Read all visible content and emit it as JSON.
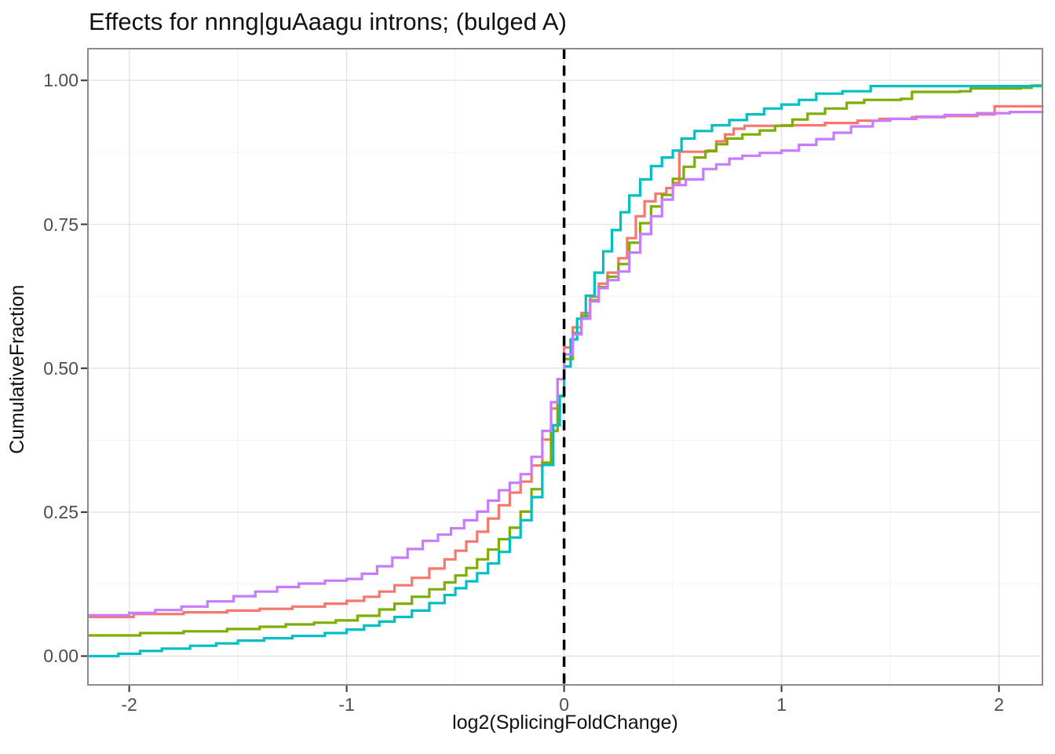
{
  "chart_data": {
    "type": "line",
    "subtype": "ecdf_step",
    "title": "Effects for nnng|guAaagu introns; (bulged A)",
    "xlabel": "log2(SplicingFoldChange)",
    "ylabel": "CumulativeFraction",
    "xlim": [
      -2.19,
      2.2
    ],
    "ylim": [
      -0.05,
      1.055
    ],
    "grid": true,
    "legend_position": "none",
    "x_ticks": {
      "values": [
        -2,
        -1,
        0,
        1,
        2
      ],
      "labels": [
        "-2",
        "-1",
        "0",
        "1",
        "2"
      ]
    },
    "y_ticks": {
      "values": [
        0,
        0.25,
        0.5,
        0.75,
        1.0
      ],
      "labels": [
        "0.00",
        "0.25",
        "0.50",
        "0.75",
        "1.00"
      ]
    },
    "x_minor_ticks": [
      -1.5,
      -0.5,
      0.5,
      1.5
    ],
    "y_minor_ticks": [
      0.125,
      0.375,
      0.625,
      0.875
    ],
    "reference_line": {
      "x": 0,
      "style": "dashed",
      "color": "#000000"
    },
    "series": [
      {
        "name": "salmon",
        "color": "#F8766D",
        "points": [
          [
            -2.19,
            0.068
          ],
          [
            -1.98,
            0.073
          ],
          [
            -1.75,
            0.076
          ],
          [
            -1.55,
            0.079
          ],
          [
            -1.4,
            0.082
          ],
          [
            -1.25,
            0.086
          ],
          [
            -1.1,
            0.091
          ],
          [
            -1.0,
            0.096
          ],
          [
            -0.92,
            0.103
          ],
          [
            -0.85,
            0.112
          ],
          [
            -0.78,
            0.123
          ],
          [
            -0.7,
            0.136
          ],
          [
            -0.62,
            0.152
          ],
          [
            -0.55,
            0.168
          ],
          [
            -0.5,
            0.183
          ],
          [
            -0.45,
            0.199
          ],
          [
            -0.4,
            0.216
          ],
          [
            -0.35,
            0.239
          ],
          [
            -0.3,
            0.262
          ],
          [
            -0.25,
            0.284
          ],
          [
            -0.2,
            0.303
          ],
          [
            -0.15,
            0.331
          ],
          [
            -0.1,
            0.376
          ],
          [
            -0.06,
            0.43
          ],
          [
            -0.03,
            0.481
          ],
          [
            0.0,
            0.536
          ],
          [
            0.04,
            0.571
          ],
          [
            0.08,
            0.596
          ],
          [
            0.12,
            0.624
          ],
          [
            0.16,
            0.647
          ],
          [
            0.2,
            0.666
          ],
          [
            0.25,
            0.691
          ],
          [
            0.29,
            0.726
          ],
          [
            0.33,
            0.764
          ],
          [
            0.37,
            0.79
          ],
          [
            0.42,
            0.803
          ],
          [
            0.47,
            0.813
          ],
          [
            0.5,
            0.822
          ],
          [
            0.53,
            0.876
          ],
          [
            0.66,
            0.878
          ],
          [
            0.7,
            0.894
          ],
          [
            0.74,
            0.906
          ],
          [
            0.78,
            0.916
          ],
          [
            0.83,
            0.921
          ],
          [
            1.0,
            0.922
          ],
          [
            1.2,
            0.926
          ],
          [
            1.35,
            0.93
          ],
          [
            1.45,
            0.933
          ],
          [
            1.6,
            0.936
          ],
          [
            1.75,
            0.938
          ],
          [
            1.9,
            0.941
          ],
          [
            1.98,
            0.955
          ],
          [
            2.2,
            0.956
          ]
        ]
      },
      {
        "name": "green",
        "color": "#7CAE00",
        "points": [
          [
            -2.19,
            0.036
          ],
          [
            -1.95,
            0.04
          ],
          [
            -1.75,
            0.043
          ],
          [
            -1.55,
            0.047
          ],
          [
            -1.4,
            0.051
          ],
          [
            -1.28,
            0.055
          ],
          [
            -1.15,
            0.058
          ],
          [
            -1.05,
            0.062
          ],
          [
            -0.95,
            0.07
          ],
          [
            -0.85,
            0.081
          ],
          [
            -0.78,
            0.091
          ],
          [
            -0.7,
            0.103
          ],
          [
            -0.62,
            0.116
          ],
          [
            -0.55,
            0.128
          ],
          [
            -0.5,
            0.14
          ],
          [
            -0.45,
            0.153
          ],
          [
            -0.4,
            0.168
          ],
          [
            -0.35,
            0.185
          ],
          [
            -0.3,
            0.203
          ],
          [
            -0.25,
            0.223
          ],
          [
            -0.2,
            0.251
          ],
          [
            -0.15,
            0.29
          ],
          [
            -0.1,
            0.336
          ],
          [
            -0.06,
            0.391
          ],
          [
            -0.03,
            0.451
          ],
          [
            0.0,
            0.516
          ],
          [
            0.04,
            0.561
          ],
          [
            0.08,
            0.591
          ],
          [
            0.12,
            0.618
          ],
          [
            0.16,
            0.641
          ],
          [
            0.2,
            0.659
          ],
          [
            0.25,
            0.681
          ],
          [
            0.3,
            0.718
          ],
          [
            0.35,
            0.752
          ],
          [
            0.4,
            0.781
          ],
          [
            0.45,
            0.801
          ],
          [
            0.5,
            0.829
          ],
          [
            0.55,
            0.85
          ],
          [
            0.6,
            0.866
          ],
          [
            0.65,
            0.877
          ],
          [
            0.7,
            0.889
          ],
          [
            0.75,
            0.899
          ],
          [
            0.82,
            0.906
          ],
          [
            0.9,
            0.913
          ],
          [
            0.97,
            0.921
          ],
          [
            1.05,
            0.932
          ],
          [
            1.12,
            0.942
          ],
          [
            1.2,
            0.951
          ],
          [
            1.3,
            0.961
          ],
          [
            1.38,
            0.966
          ],
          [
            1.55,
            0.968
          ],
          [
            1.6,
            0.98
          ],
          [
            1.82,
            0.981
          ],
          [
            1.87,
            0.986
          ],
          [
            2.1,
            0.987
          ],
          [
            2.15,
            0.991
          ],
          [
            2.2,
            0.991
          ]
        ]
      },
      {
        "name": "teal",
        "color": "#00BFC4",
        "points": [
          [
            -2.19,
            0.0
          ],
          [
            -2.05,
            0.004
          ],
          [
            -1.95,
            0.009
          ],
          [
            -1.85,
            0.013
          ],
          [
            -1.72,
            0.018
          ],
          [
            -1.6,
            0.022
          ],
          [
            -1.5,
            0.027
          ],
          [
            -1.38,
            0.031
          ],
          [
            -1.25,
            0.035
          ],
          [
            -1.1,
            0.04
          ],
          [
            -1.0,
            0.046
          ],
          [
            -0.92,
            0.053
          ],
          [
            -0.85,
            0.06
          ],
          [
            -0.78,
            0.068
          ],
          [
            -0.7,
            0.079
          ],
          [
            -0.62,
            0.092
          ],
          [
            -0.55,
            0.106
          ],
          [
            -0.5,
            0.118
          ],
          [
            -0.45,
            0.13
          ],
          [
            -0.4,
            0.144
          ],
          [
            -0.35,
            0.161
          ],
          [
            -0.3,
            0.181
          ],
          [
            -0.25,
            0.206
          ],
          [
            -0.2,
            0.236
          ],
          [
            -0.15,
            0.276
          ],
          [
            -0.1,
            0.332
          ],
          [
            -0.05,
            0.401
          ],
          [
            -0.02,
            0.452
          ],
          [
            0.0,
            0.503
          ],
          [
            0.03,
            0.55
          ],
          [
            0.06,
            0.586
          ],
          [
            0.1,
            0.626
          ],
          [
            0.14,
            0.666
          ],
          [
            0.18,
            0.703
          ],
          [
            0.22,
            0.74
          ],
          [
            0.26,
            0.771
          ],
          [
            0.3,
            0.8
          ],
          [
            0.35,
            0.828
          ],
          [
            0.4,
            0.851
          ],
          [
            0.45,
            0.866
          ],
          [
            0.5,
            0.878
          ],
          [
            0.54,
            0.899
          ],
          [
            0.6,
            0.912
          ],
          [
            0.68,
            0.922
          ],
          [
            0.76,
            0.931
          ],
          [
            0.84,
            0.941
          ],
          [
            0.92,
            0.951
          ],
          [
            1.0,
            0.958
          ],
          [
            1.08,
            0.966
          ],
          [
            1.16,
            0.977
          ],
          [
            1.28,
            0.981
          ],
          [
            1.41,
            0.99
          ],
          [
            2.2,
            0.99
          ]
        ]
      },
      {
        "name": "purple",
        "color": "#C77CFF",
        "points": [
          [
            -2.19,
            0.071
          ],
          [
            -2.0,
            0.075
          ],
          [
            -1.88,
            0.08
          ],
          [
            -1.76,
            0.086
          ],
          [
            -1.64,
            0.095
          ],
          [
            -1.52,
            0.104
          ],
          [
            -1.42,
            0.112
          ],
          [
            -1.32,
            0.12
          ],
          [
            -1.22,
            0.126
          ],
          [
            -1.1,
            0.131
          ],
          [
            -1.0,
            0.134
          ],
          [
            -0.93,
            0.143
          ],
          [
            -0.86,
            0.156
          ],
          [
            -0.79,
            0.171
          ],
          [
            -0.72,
            0.186
          ],
          [
            -0.65,
            0.2
          ],
          [
            -0.58,
            0.211
          ],
          [
            -0.52,
            0.222
          ],
          [
            -0.46,
            0.236
          ],
          [
            -0.4,
            0.251
          ],
          [
            -0.35,
            0.27
          ],
          [
            -0.3,
            0.288
          ],
          [
            -0.25,
            0.301
          ],
          [
            -0.2,
            0.316
          ],
          [
            -0.15,
            0.346
          ],
          [
            -0.1,
            0.391
          ],
          [
            -0.06,
            0.441
          ],
          [
            -0.03,
            0.481
          ],
          [
            0.0,
            0.524
          ],
          [
            0.04,
            0.559
          ],
          [
            0.08,
            0.586
          ],
          [
            0.12,
            0.616
          ],
          [
            0.16,
            0.639
          ],
          [
            0.2,
            0.653
          ],
          [
            0.25,
            0.668
          ],
          [
            0.3,
            0.701
          ],
          [
            0.35,
            0.733
          ],
          [
            0.4,
            0.764
          ],
          [
            0.45,
            0.793
          ],
          [
            0.5,
            0.818
          ],
          [
            0.56,
            0.828
          ],
          [
            0.64,
            0.846
          ],
          [
            0.7,
            0.854
          ],
          [
            0.76,
            0.864
          ],
          [
            0.82,
            0.869
          ],
          [
            0.9,
            0.874
          ],
          [
            1.0,
            0.878
          ],
          [
            1.08,
            0.888
          ],
          [
            1.16,
            0.898
          ],
          [
            1.24,
            0.909
          ],
          [
            1.32,
            0.92
          ],
          [
            1.42,
            0.93
          ],
          [
            1.5,
            0.933
          ],
          [
            1.62,
            0.937
          ],
          [
            1.75,
            0.94
          ],
          [
            1.9,
            0.943
          ],
          [
            2.05,
            0.945
          ],
          [
            2.2,
            0.947
          ]
        ]
      }
    ]
  },
  "style": {
    "panel_border": "#8c8c8c",
    "grid_major": "#e3e3e3",
    "grid_minor": "#f0f0f0",
    "axis_tick": "#333333",
    "tick_label": "#4d4d4d",
    "line_width": 3.2
  }
}
